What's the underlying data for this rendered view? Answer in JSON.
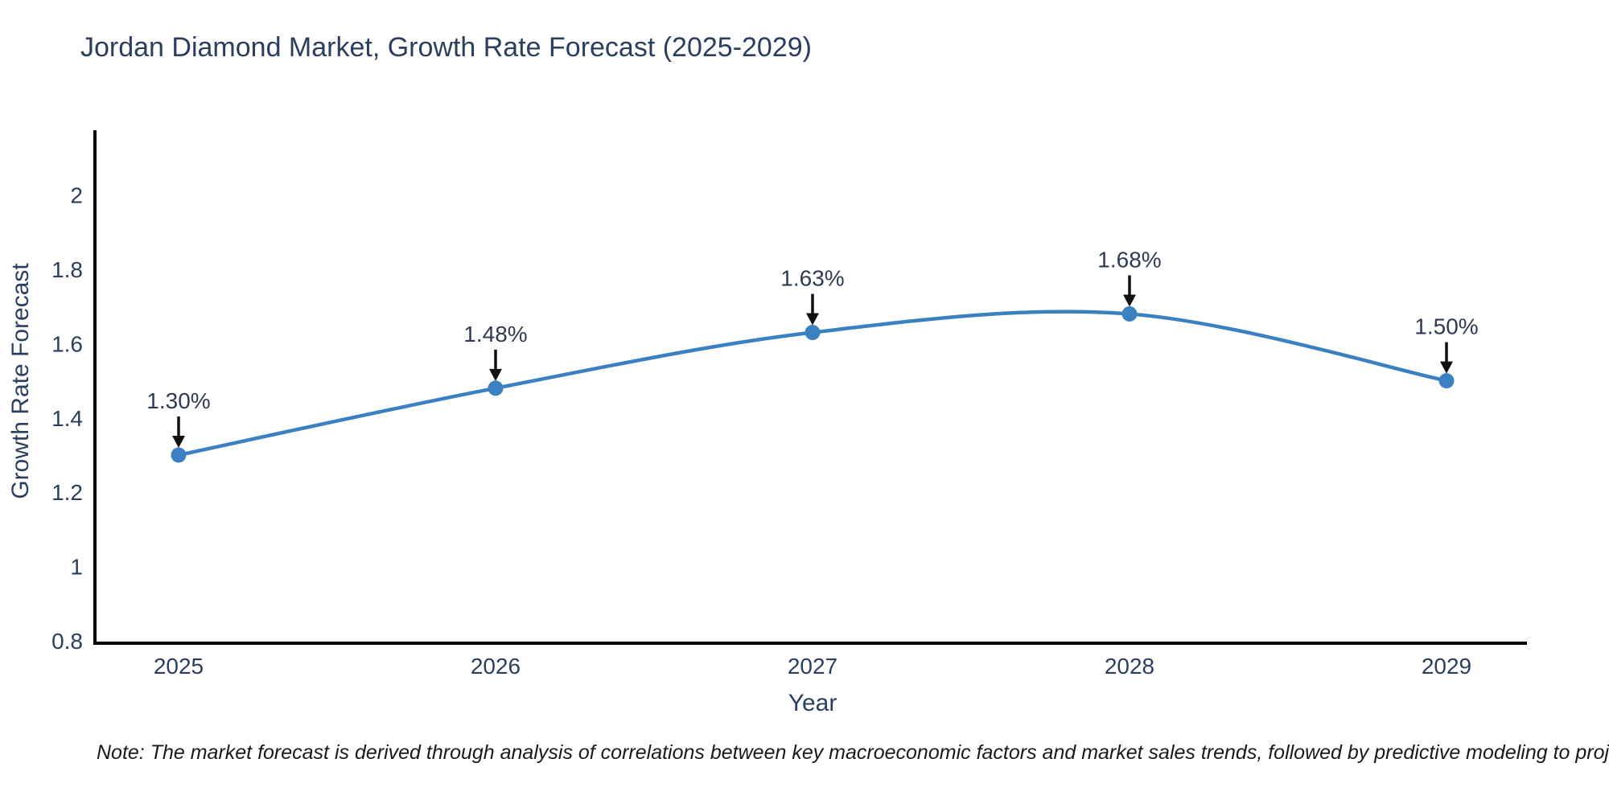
{
  "page": {
    "background": "#ffffff"
  },
  "chart_data": {
    "type": "line",
    "title": "Jordan Diamond Market, Growth Rate Forecast (2025-2029)",
    "xlabel": "Year",
    "ylabel": "Growth Rate Forecast",
    "categories": [
      "2025",
      "2026",
      "2027",
      "2028",
      "2029"
    ],
    "x": [
      2025,
      2026,
      2027,
      2028,
      2029
    ],
    "values": [
      1.3,
      1.48,
      1.63,
      1.68,
      1.5
    ],
    "point_labels": [
      "1.30%",
      "1.48%",
      "1.63%",
      "1.68%",
      "1.50%"
    ],
    "ytick_labels": [
      "0.8",
      "1",
      "1.2",
      "1.4",
      "1.6",
      "1.8",
      "2"
    ],
    "yticks": [
      0.8,
      1,
      1.2,
      1.4,
      1.6,
      1.8,
      2
    ],
    "ylim": [
      0.8,
      2.18
    ],
    "xlim": [
      2024.73,
      2029.25
    ],
    "line_shape": "spline",
    "grid": false,
    "legend_position": "none",
    "line_color": "#3b80c0",
    "marker_color": "#3b80c0",
    "axis_color": "#000000",
    "text_color": "#2a3f5f",
    "annotation_text_color": "#2f3b52",
    "annotation_arrow_color": "#111111"
  },
  "note": {
    "text": "Note: The market forecast is derived through analysis of correlations between key macroeconomic factors and market sales trends, followed by predictive modeling to project future sales"
  }
}
